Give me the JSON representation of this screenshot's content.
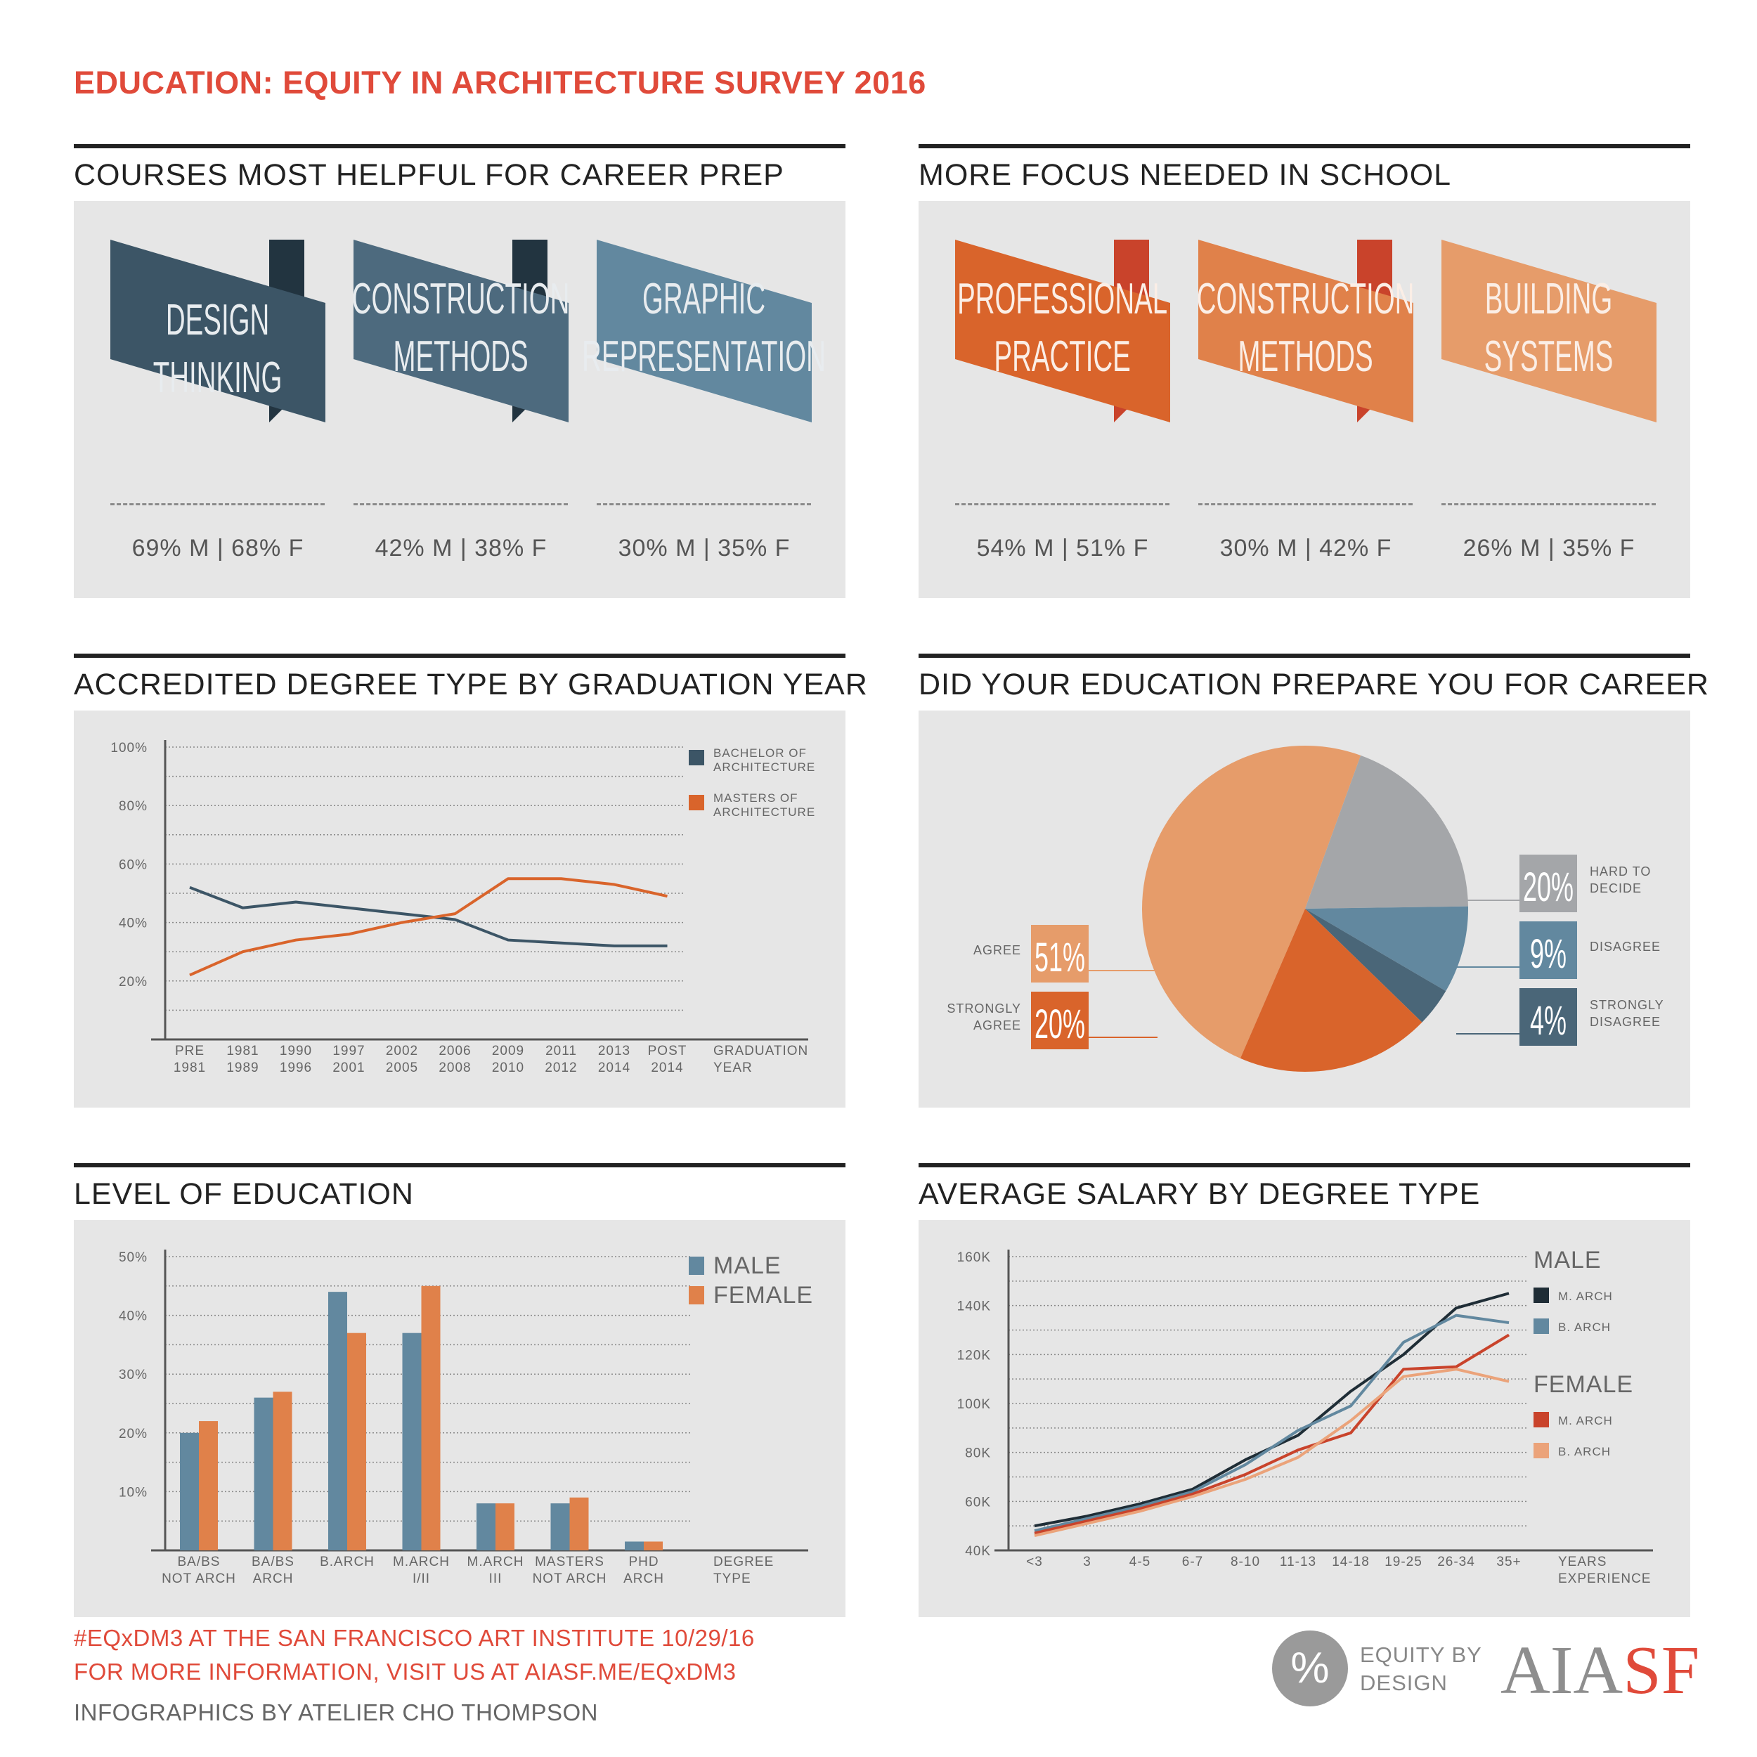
{
  "title": "EDUCATION: EQUITY IN ARCHITECTURE SURVEY 2016",
  "colors": {
    "title_red": "#e04a3a",
    "navy": "#3c5566",
    "steel": "#62889f",
    "orange": "#d9642b",
    "light_orange": "#e69c6a",
    "grey": "#a4a6a9"
  },
  "courses": {
    "title": "COURSES MOST HELPFUL FOR CAREER PREP",
    "items": [
      {
        "line1": "DESIGN",
        "line2": "THINKING",
        "stats": "69% M | 68% F"
      },
      {
        "line1": "CONSTRUCTION",
        "line2": "METHODS",
        "stats": "42% M | 38% F"
      },
      {
        "line1": "GRAPHIC",
        "line2": "REPRESENTATION",
        "stats": "30% M | 35% F"
      }
    ]
  },
  "focus": {
    "title": "MORE FOCUS NEEDED IN SCHOOL",
    "items": [
      {
        "line1": "PROFESSIONAL",
        "line2": "PRACTICE",
        "stats": "54% M | 51% F"
      },
      {
        "line1": "CONSTRUCTION",
        "line2": "METHODS",
        "stats": "30% M | 42% F"
      },
      {
        "line1": "BUILDING",
        "line2": "SYSTEMS",
        "stats": "26% M | 35% F"
      }
    ]
  },
  "chart_data": [
    {
      "type": "line",
      "title": "ACCREDITED DEGREE TYPE BY GRADUATION YEAR",
      "categories": [
        [
          "PRE",
          "1981"
        ],
        [
          "1981",
          "1989"
        ],
        [
          "1990",
          "1996"
        ],
        [
          "1997",
          "2001"
        ],
        [
          "2002",
          "2005"
        ],
        [
          "2006",
          "2008"
        ],
        [
          "2009",
          "2010"
        ],
        [
          "2011",
          "2012"
        ],
        [
          "2013",
          "2014"
        ],
        [
          "POST",
          "2014"
        ]
      ],
      "xlabel": [
        "GRADUATION",
        "YEAR"
      ],
      "yticks": [
        "100%",
        "80%",
        "60%",
        "40%",
        "20%"
      ],
      "ylim": [
        0,
        100
      ],
      "series": [
        {
          "name": [
            "BACHELOR OF",
            "ARCHITECTURE"
          ],
          "color": "#3c5566",
          "values": [
            52,
            45,
            47,
            45,
            43,
            41,
            34,
            33,
            32,
            32
          ]
        },
        {
          "name": [
            "MASTERS OF",
            "ARCHITECTURE"
          ],
          "color": "#d9642b",
          "values": [
            22,
            30,
            34,
            36,
            40,
            43,
            55,
            55,
            53,
            49
          ]
        }
      ]
    },
    {
      "type": "pie",
      "title": "DID YOUR EDUCATION PREPARE YOU FOR CAREER",
      "slices": [
        {
          "label": [
            "AGREE"
          ],
          "value": 51,
          "display": "51%",
          "color": "#e69c6a"
        },
        {
          "label": [
            "HARD TO",
            "DECIDE"
          ],
          "value": 20,
          "display": "20%",
          "color": "#a4a6a9"
        },
        {
          "label": [
            "DISAGREE"
          ],
          "value": 9,
          "display": "9%",
          "color": "#62889f"
        },
        {
          "label": [
            "STRONGLY",
            "DISAGREE"
          ],
          "value": 4,
          "display": "4%",
          "color": "#4a6678"
        },
        {
          "label": [
            "STRONGLY",
            "AGREE"
          ],
          "value": 20,
          "display": "20%",
          "color": "#d9642b"
        }
      ]
    },
    {
      "type": "bar",
      "title": "LEVEL OF EDUCATION",
      "categories": [
        [
          "BA/BS",
          "NOT ARCH"
        ],
        [
          "BA/BS",
          "ARCH"
        ],
        [
          "B.ARCH"
        ],
        [
          "M.ARCH",
          "I/II"
        ],
        [
          "M.ARCH",
          "III"
        ],
        [
          "MASTERS",
          "NOT ARCH"
        ],
        [
          "PHD",
          "ARCH"
        ]
      ],
      "xlabel": [
        "DEGREE",
        "TYPE"
      ],
      "yticks": [
        "50%",
        "40%",
        "30%",
        "20%",
        "10%"
      ],
      "ylim": [
        0,
        50
      ],
      "series": [
        {
          "name": "MALE",
          "color": "#62889f",
          "values": [
            20,
            26,
            44,
            37,
            8,
            8,
            1.5
          ]
        },
        {
          "name": "FEMALE",
          "color": "#e0814a",
          "values": [
            22,
            27,
            37,
            45,
            8,
            9,
            1.5
          ]
        }
      ]
    },
    {
      "type": "line",
      "title": "AVERAGE SALARY BY DEGREE TYPE",
      "categories": [
        "<3",
        "3",
        "4-5",
        "6-7",
        "8-10",
        "11-13",
        "14-18",
        "19-25",
        "26-34",
        "35+"
      ],
      "xlabel": [
        "YEARS",
        "EXPERIENCE"
      ],
      "yticks": [
        "160K",
        "140K",
        "120K",
        "100K",
        "80K",
        "60K",
        "40K"
      ],
      "ylim": [
        40,
        160
      ],
      "legend_groups": [
        "MALE",
        "FEMALE"
      ],
      "series": [
        {
          "name": "M. ARCH",
          "group": "MALE",
          "color": "#1f2d36",
          "values": [
            50,
            54,
            59,
            65,
            77,
            87,
            105,
            120,
            139,
            145
          ]
        },
        {
          "name": "B. ARCH",
          "group": "MALE",
          "color": "#62889f",
          "values": [
            48,
            53,
            58,
            64,
            75,
            89,
            99,
            125,
            136,
            133
          ]
        },
        {
          "name": "M. ARCH",
          "group": "FEMALE",
          "color": "#c9432b",
          "values": [
            47,
            52,
            57,
            63,
            71,
            81,
            88,
            114,
            115,
            128
          ]
        },
        {
          "name": "B. ARCH",
          "group": "FEMALE",
          "color": "#eba37a",
          "values": [
            46,
            51,
            56,
            62,
            69,
            78,
            93,
            111,
            114,
            109
          ]
        }
      ]
    }
  ],
  "footer": {
    "line1": "#EQxDM3 AT THE SAN FRANCISCO ART INSTITUTE 10/29/16",
    "line2": "FOR MORE INFORMATION, VISIT US AT AIASF.ME/EQxDM3",
    "line3": "INFOGRAPHICS BY ATELIER CHO THOMPSON",
    "logo_symbol": "%",
    "logo_eq_line1": "EQUITY BY",
    "logo_eq_line2": "DESIGN",
    "logo_aia_a": "AIA",
    "logo_aia_s": "SF"
  }
}
